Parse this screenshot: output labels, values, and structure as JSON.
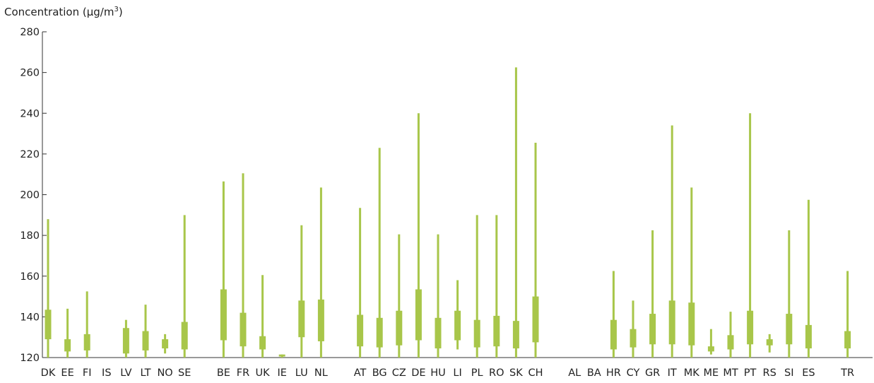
{
  "chart_data": {
    "type": "boxplot",
    "ylabel_base": "Concentration (µg/m",
    "ylabel_sup": "3",
    "ylabel_end": ")",
    "ylim": [
      120,
      280
    ],
    "yticks": [
      120,
      140,
      160,
      180,
      200,
      220,
      240,
      260,
      280
    ],
    "grid": false,
    "color": "#a8c64a",
    "categories": [
      {
        "label": "DK",
        "min": 120,
        "q1": 129,
        "q3": 143.5,
        "max": 188
      },
      {
        "label": "EE",
        "min": 120,
        "q1": 123,
        "q3": 129,
        "max": 144
      },
      {
        "label": "FI",
        "min": 120,
        "q1": 123.5,
        "q3": 131.5,
        "max": 152.5
      },
      {
        "label": "IS"
      },
      {
        "label": "LV",
        "min": 120,
        "q1": 122,
        "q3": 134.5,
        "max": 138.5
      },
      {
        "label": "LT",
        "min": 120,
        "q1": 123.5,
        "q3": 133,
        "max": 146
      },
      {
        "label": "NO",
        "min": 122,
        "q1": 124.5,
        "q3": 129,
        "max": 131.5
      },
      {
        "label": "SE",
        "min": 120,
        "q1": 124,
        "q3": 137.5,
        "max": 190
      },
      {
        "label": ""
      },
      {
        "label": "BE",
        "min": 120,
        "q1": 128.5,
        "q3": 153.5,
        "max": 206.5
      },
      {
        "label": "FR",
        "min": 120,
        "q1": 125.5,
        "q3": 142,
        "max": 210.5
      },
      {
        "label": "UK",
        "min": 120,
        "q1": 124,
        "q3": 130.5,
        "max": 160.5
      },
      {
        "label": "IE",
        "min": 120,
        "q1": 120.5,
        "q3": 121.5,
        "max": 121.5
      },
      {
        "label": "LU",
        "min": 120,
        "q1": 130,
        "q3": 148,
        "max": 185
      },
      {
        "label": "NL",
        "min": 120,
        "q1": 128,
        "q3": 148.5,
        "max": 203.5
      },
      {
        "label": ""
      },
      {
        "label": "AT",
        "min": 120,
        "q1": 125.5,
        "q3": 141,
        "max": 193.5
      },
      {
        "label": "BG",
        "min": 120,
        "q1": 125,
        "q3": 139.5,
        "max": 223
      },
      {
        "label": "CZ",
        "min": 120,
        "q1": 126,
        "q3": 143,
        "max": 180.5
      },
      {
        "label": "DE",
        "min": 120,
        "q1": 128.5,
        "q3": 153.5,
        "max": 240
      },
      {
        "label": "HU",
        "min": 120,
        "q1": 124.5,
        "q3": 139.5,
        "max": 180.5
      },
      {
        "label": "LI",
        "min": 124,
        "q1": 128.5,
        "q3": 143,
        "max": 158
      },
      {
        "label": "PL",
        "min": 120,
        "q1": 125,
        "q3": 138.5,
        "max": 190
      },
      {
        "label": "RO",
        "min": 120,
        "q1": 125.5,
        "q3": 140.5,
        "max": 190
      },
      {
        "label": "SK",
        "min": 120,
        "q1": 124.5,
        "q3": 138,
        "max": 262.5
      },
      {
        "label": "CH",
        "min": 120,
        "q1": 127.5,
        "q3": 150,
        "max": 225.5
      },
      {
        "label": ""
      },
      {
        "label": "AL"
      },
      {
        "label": "BA"
      },
      {
        "label": "HR",
        "min": 120,
        "q1": 124,
        "q3": 138.5,
        "max": 162.5
      },
      {
        "label": "CY",
        "min": 120,
        "q1": 125,
        "q3": 134,
        "max": 148
      },
      {
        "label": "GR",
        "min": 120,
        "q1": 126.5,
        "q3": 141.5,
        "max": 182.5
      },
      {
        "label": "IT",
        "min": 120,
        "q1": 126.5,
        "q3": 148,
        "max": 234
      },
      {
        "label": "MK",
        "min": 120,
        "q1": 126,
        "q3": 147,
        "max": 203.5
      },
      {
        "label": "ME",
        "min": 121.5,
        "q1": 123,
        "q3": 125.5,
        "max": 134
      },
      {
        "label": "MT",
        "min": 120,
        "q1": 124,
        "q3": 131,
        "max": 142.5
      },
      {
        "label": "PT",
        "min": 120,
        "q1": 126.5,
        "q3": 143,
        "max": 240
      },
      {
        "label": "RS",
        "min": 122.5,
        "q1": 126,
        "q3": 129,
        "max": 131.5
      },
      {
        "label": "SI",
        "min": 120,
        "q1": 126.5,
        "q3": 141.5,
        "max": 182.5
      },
      {
        "label": "ES",
        "min": 120,
        "q1": 124.5,
        "q3": 136,
        "max": 197.5
      },
      {
        "label": ""
      },
      {
        "label": "TR",
        "min": 120,
        "q1": 124.5,
        "q3": 133,
        "max": 162.5
      }
    ]
  }
}
